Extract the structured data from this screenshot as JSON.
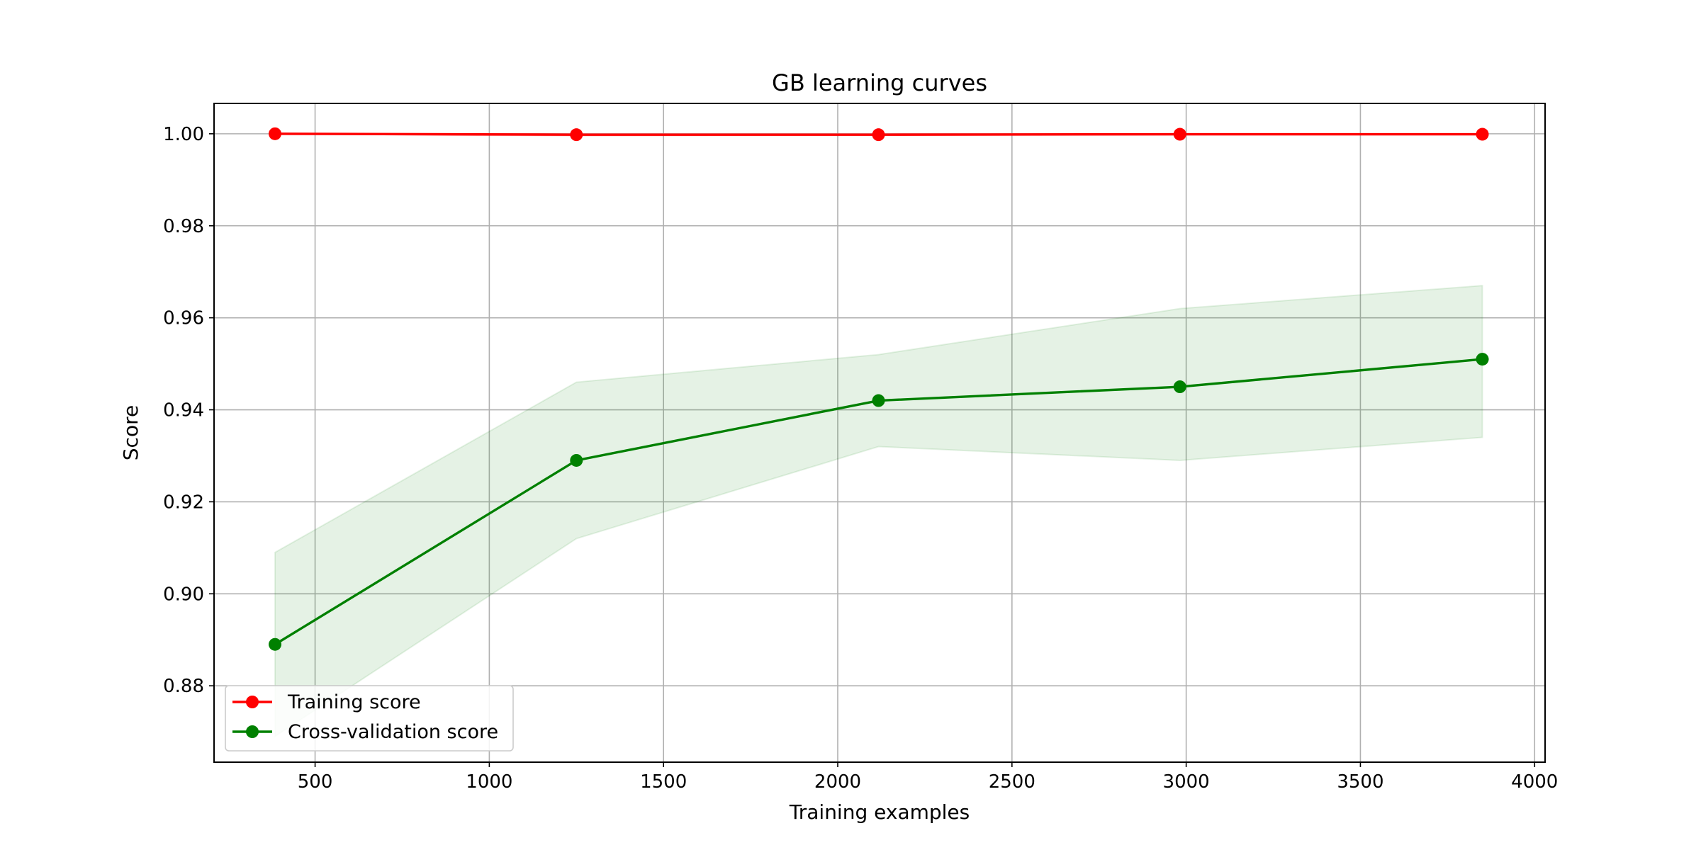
{
  "chart_data": {
    "type": "line",
    "title": "GB learning curves",
    "xlabel": "Training examples",
    "ylabel": "Score",
    "xlim": [
      210,
      4030
    ],
    "ylim": [
      0.8634,
      1.0066
    ],
    "xticks": [
      500,
      1000,
      1500,
      2000,
      2500,
      3000,
      3500,
      4000
    ],
    "yticks": [
      0.88,
      0.9,
      0.92,
      0.94,
      0.96,
      0.98,
      1.0
    ],
    "grid": true,
    "legend_position": "lower-left",
    "x": [
      385,
      1250,
      2117,
      2982,
      3850
    ],
    "series": [
      {
        "name": "Training score",
        "color": "#ff0000",
        "marker": "circle",
        "values": [
          1.0,
          0.9998,
          0.9998,
          0.9999,
          0.9999
        ],
        "band_lower": [
          1.0,
          0.9995,
          0.9996,
          0.9997,
          0.9998
        ],
        "band_upper": [
          1.0,
          1.0,
          1.0,
          1.0,
          1.0
        ]
      },
      {
        "name": "Cross-validation score",
        "color": "#008000",
        "marker": "circle",
        "band_color": "#008000",
        "values": [
          0.889,
          0.929,
          0.942,
          0.945,
          0.951
        ],
        "band_lower": [
          0.869,
          0.912,
          0.932,
          0.929,
          0.934
        ],
        "band_upper": [
          0.909,
          0.946,
          0.952,
          0.962,
          0.967
        ]
      }
    ]
  }
}
